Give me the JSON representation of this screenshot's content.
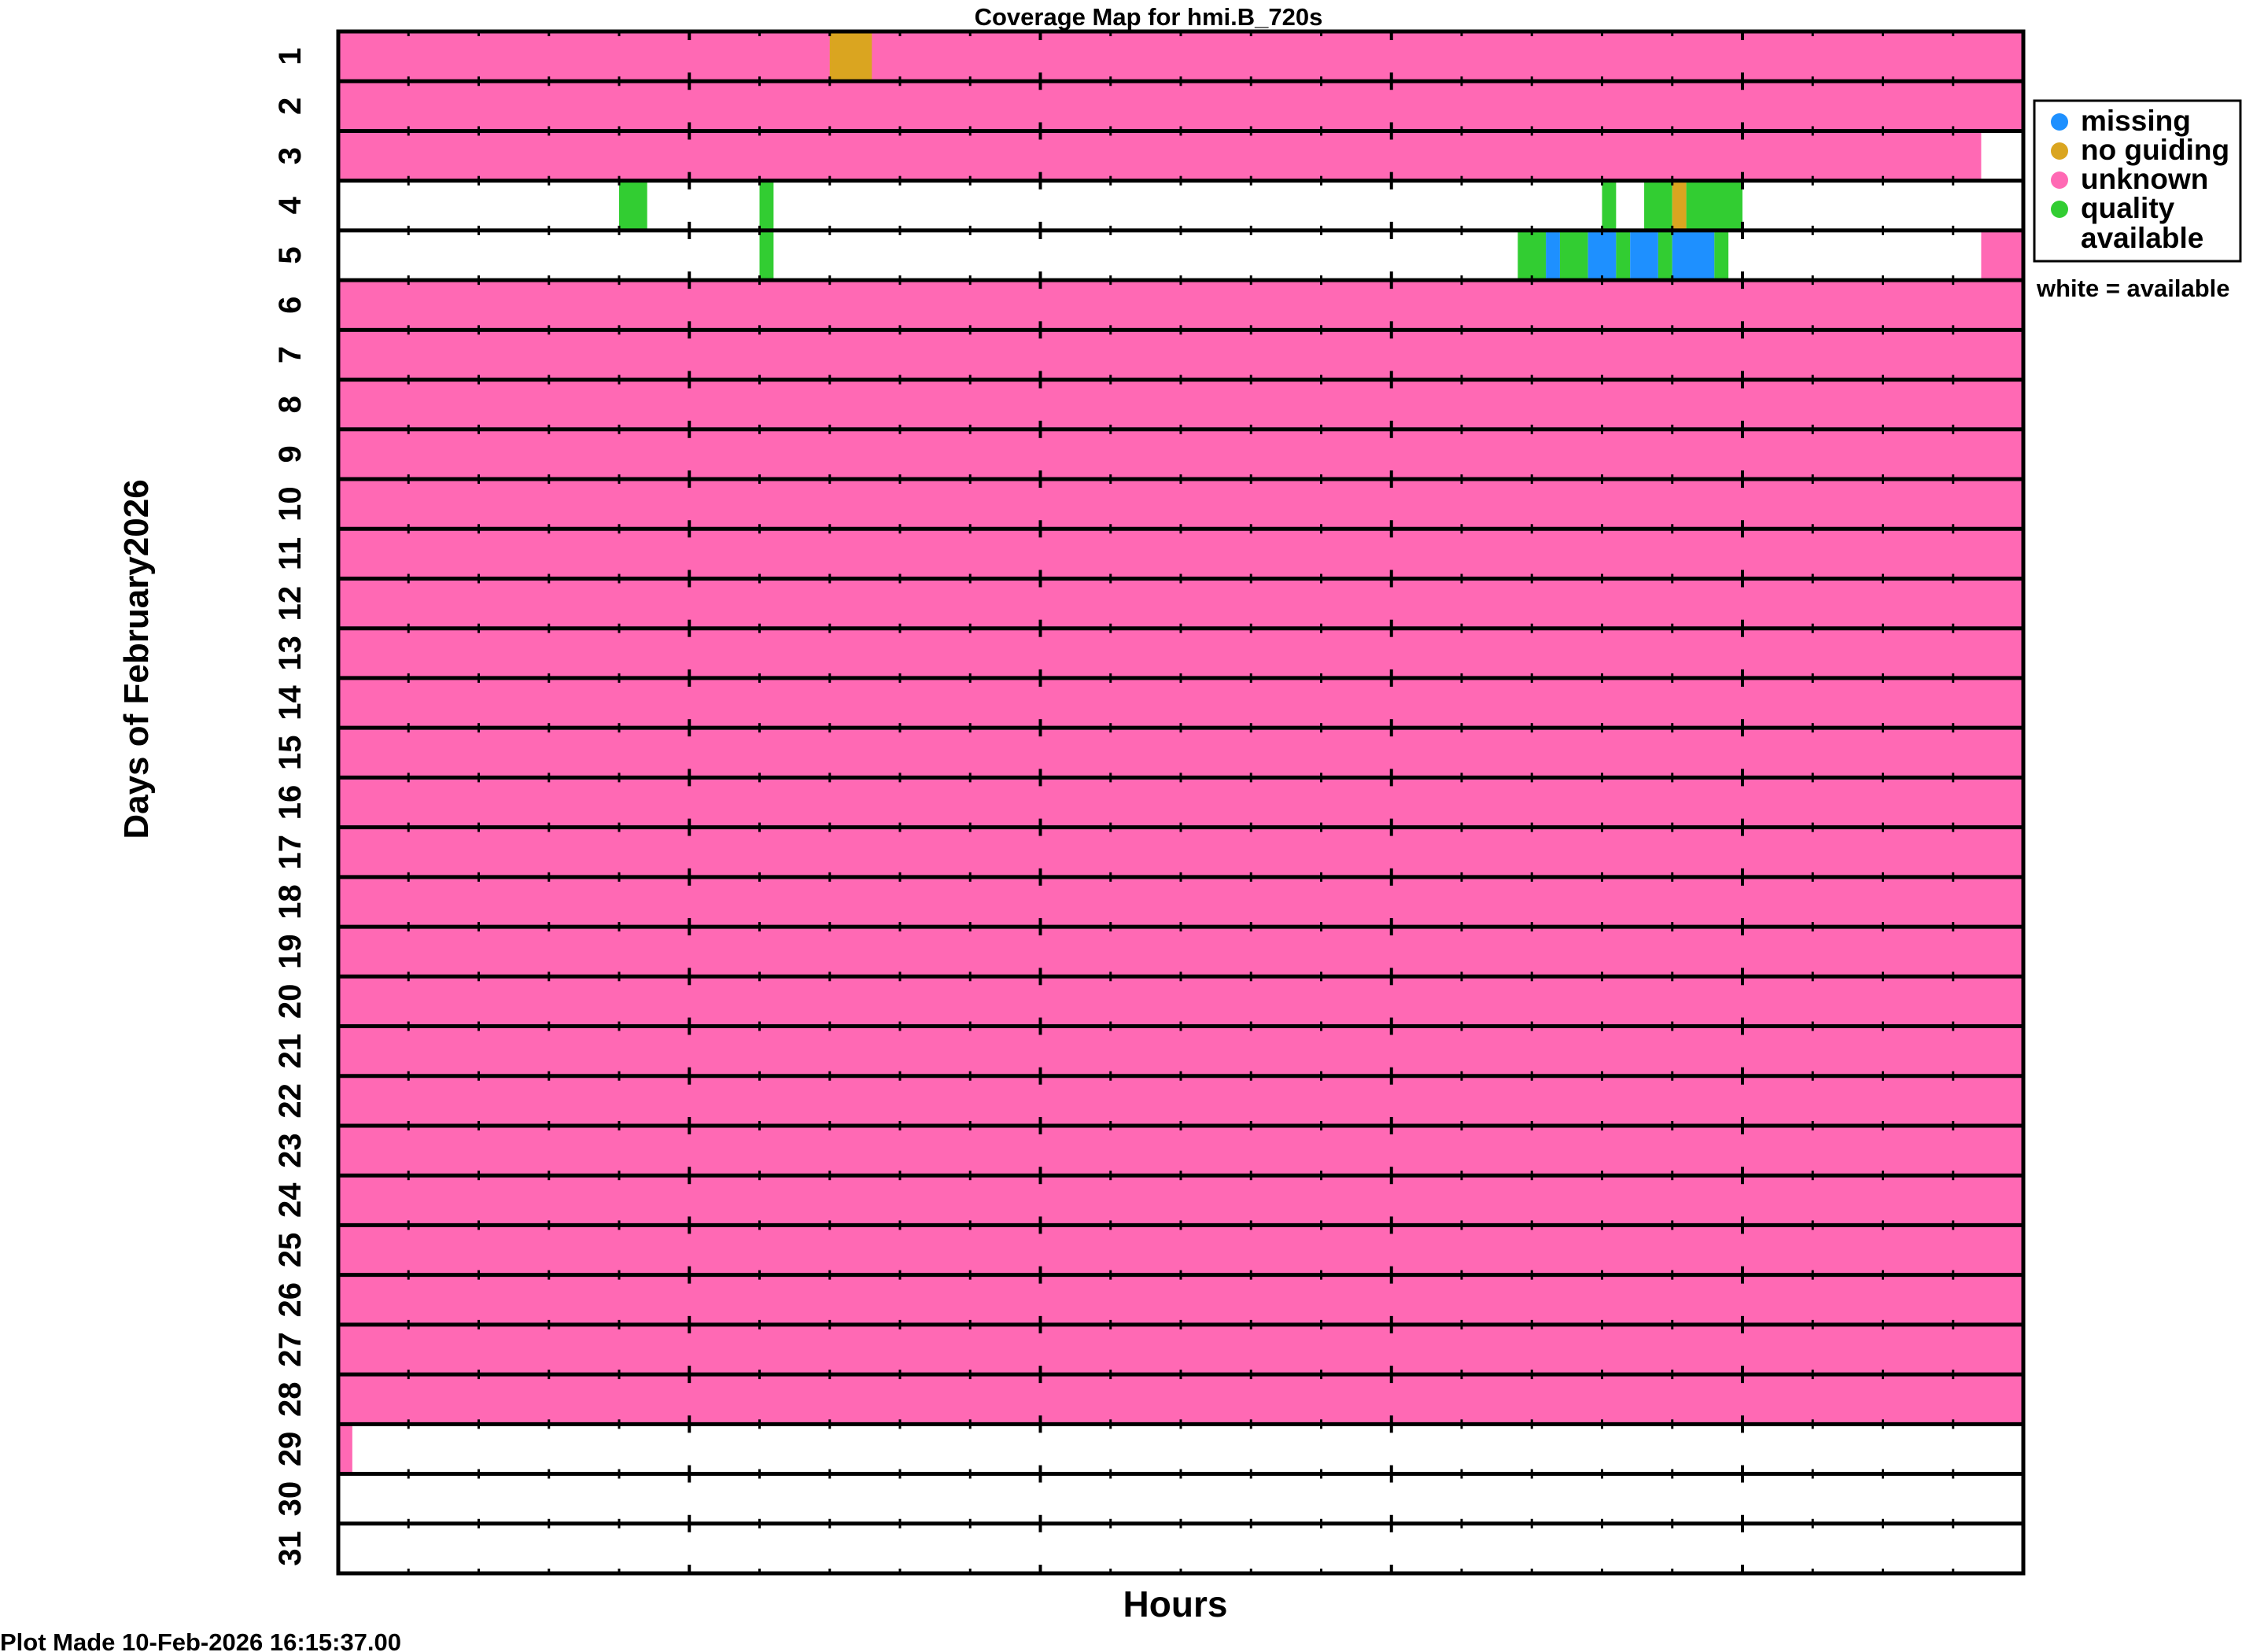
{
  "chart_data": {
    "type": "heatmap",
    "title": "Coverage Map for hmi.B_720s",
    "xlabel": "Hours",
    "ylabel": "Days of February2026",
    "footer": "Plot Made 10-Feb-2026 16:15:37.00",
    "xlim": [
      0,
      24
    ],
    "days": [
      "1",
      "2",
      "3",
      "4",
      "5",
      "6",
      "7",
      "8",
      "9",
      "10",
      "11",
      "12",
      "13",
      "14",
      "15",
      "16",
      "17",
      "18",
      "19",
      "20",
      "21",
      "22",
      "23",
      "24",
      "25",
      "26",
      "27",
      "28",
      "29",
      "30",
      "31"
    ],
    "categories": {
      "missing": {
        "label": "missing",
        "color": "#1e90ff"
      },
      "noguiding": {
        "label": "no guiding",
        "color": "#daa520"
      },
      "unknown": {
        "label": "unknown",
        "color": "#ff69b4"
      },
      "quality": {
        "label": "quality",
        "color": "#32cd32"
      },
      "available": {
        "label": "white = available",
        "color": "#ffffff"
      }
    },
    "legend": {
      "items": [
        {
          "label": "missing",
          "color": "#1e90ff"
        },
        {
          "label": "no guiding",
          "color": "#daa520"
        },
        {
          "label": "unknown",
          "color": "#ff69b4"
        },
        {
          "label": "quality",
          "color": "#32cd32"
        }
      ],
      "extra": "available",
      "note": "white = available",
      "placement": "right"
    },
    "segments": [
      {
        "day": 1,
        "start": 0,
        "end": 24,
        "status": "unknown"
      },
      {
        "day": 1,
        "start": 7.0,
        "end": 7.6,
        "status": "noguiding"
      },
      {
        "day": 2,
        "start": 0,
        "end": 24,
        "status": "unknown"
      },
      {
        "day": 3,
        "start": 0,
        "end": 23.4,
        "status": "unknown"
      },
      {
        "day": 4,
        "start": 4.0,
        "end": 4.4,
        "status": "quality"
      },
      {
        "day": 4,
        "start": 6.0,
        "end": 6.2,
        "status": "quality"
      },
      {
        "day": 4,
        "start": 18.0,
        "end": 18.2,
        "status": "quality"
      },
      {
        "day": 4,
        "start": 18.6,
        "end": 19.0,
        "status": "quality"
      },
      {
        "day": 4,
        "start": 19.0,
        "end": 19.2,
        "status": "noguiding"
      },
      {
        "day": 4,
        "start": 19.2,
        "end": 20.0,
        "status": "quality"
      },
      {
        "day": 5,
        "start": 6.0,
        "end": 6.2,
        "status": "quality"
      },
      {
        "day": 5,
        "start": 16.8,
        "end": 17.2,
        "status": "quality"
      },
      {
        "day": 5,
        "start": 17.2,
        "end": 17.4,
        "status": "missing"
      },
      {
        "day": 5,
        "start": 17.4,
        "end": 17.8,
        "status": "quality"
      },
      {
        "day": 5,
        "start": 17.8,
        "end": 18.2,
        "status": "missing"
      },
      {
        "day": 5,
        "start": 18.2,
        "end": 18.4,
        "status": "quality"
      },
      {
        "day": 5,
        "start": 18.4,
        "end": 18.8,
        "status": "missing"
      },
      {
        "day": 5,
        "start": 18.8,
        "end": 19.0,
        "status": "quality"
      },
      {
        "day": 5,
        "start": 19.0,
        "end": 19.6,
        "status": "missing"
      },
      {
        "day": 5,
        "start": 19.6,
        "end": 19.8,
        "status": "quality"
      },
      {
        "day": 5,
        "start": 23.4,
        "end": 24,
        "status": "unknown"
      },
      {
        "day": 6,
        "start": 0,
        "end": 24,
        "status": "unknown"
      },
      {
        "day": 7,
        "start": 0,
        "end": 24,
        "status": "unknown"
      },
      {
        "day": 8,
        "start": 0,
        "end": 24,
        "status": "unknown"
      },
      {
        "day": 9,
        "start": 0,
        "end": 24,
        "status": "unknown"
      },
      {
        "day": 10,
        "start": 0,
        "end": 24,
        "status": "unknown"
      },
      {
        "day": 11,
        "start": 0,
        "end": 24,
        "status": "unknown"
      },
      {
        "day": 12,
        "start": 0,
        "end": 24,
        "status": "unknown"
      },
      {
        "day": 13,
        "start": 0,
        "end": 24,
        "status": "unknown"
      },
      {
        "day": 14,
        "start": 0,
        "end": 24,
        "status": "unknown"
      },
      {
        "day": 15,
        "start": 0,
        "end": 24,
        "status": "unknown"
      },
      {
        "day": 16,
        "start": 0,
        "end": 24,
        "status": "unknown"
      },
      {
        "day": 17,
        "start": 0,
        "end": 24,
        "status": "unknown"
      },
      {
        "day": 18,
        "start": 0,
        "end": 24,
        "status": "unknown"
      },
      {
        "day": 19,
        "start": 0,
        "end": 24,
        "status": "unknown"
      },
      {
        "day": 20,
        "start": 0,
        "end": 24,
        "status": "unknown"
      },
      {
        "day": 21,
        "start": 0,
        "end": 24,
        "status": "unknown"
      },
      {
        "day": 22,
        "start": 0,
        "end": 24,
        "status": "unknown"
      },
      {
        "day": 23,
        "start": 0,
        "end": 24,
        "status": "unknown"
      },
      {
        "day": 24,
        "start": 0,
        "end": 24,
        "status": "unknown"
      },
      {
        "day": 25,
        "start": 0,
        "end": 24,
        "status": "unknown"
      },
      {
        "day": 26,
        "start": 0,
        "end": 24,
        "status": "unknown"
      },
      {
        "day": 27,
        "start": 0,
        "end": 24,
        "status": "unknown"
      },
      {
        "day": 28,
        "start": 0,
        "end": 24,
        "status": "unknown"
      },
      {
        "day": 29,
        "start": 0,
        "end": 0.2,
        "status": "unknown"
      }
    ]
  }
}
